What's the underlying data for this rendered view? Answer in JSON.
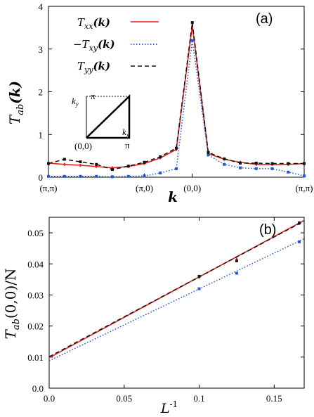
{
  "chart_data": [
    {
      "type": "line",
      "panel_label": "(a)",
      "xlabel": "k",
      "ylabel_main": "T",
      "ylabel_sub": "ab",
      "ylabel_arg": "(k)",
      "ylim": [
        0,
        4
      ],
      "yticks": [
        "0",
        "1",
        "2",
        "3",
        "4"
      ],
      "x_tick_labels": [
        "(π,π)",
        "(π,0)",
        "(0,0)",
        "(π,π)"
      ],
      "x": [
        0,
        0.5,
        1,
        1.5,
        2,
        2.5,
        3,
        3.5,
        4,
        4.5,
        5,
        5.5,
        6,
        6.5,
        7,
        7.5,
        8
      ],
      "series": [
        {
          "name_main": "T",
          "name_sub": "xx",
          "name_arg": "(k)",
          "style": "solid",
          "color": "#e8201e",
          "values": [
            0.33,
            0.3,
            0.28,
            0.25,
            0.22,
            0.25,
            0.32,
            0.45,
            0.65,
            3.55,
            0.55,
            0.42,
            0.35,
            0.3,
            0.3,
            0.3,
            0.32
          ]
        },
        {
          "name_main": "−T",
          "name_sub": "xy",
          "name_arg": "(k)",
          "style": "dotted",
          "color": "#1f57d6",
          "values": [
            0.02,
            0.02,
            0.02,
            0.02,
            0.01,
            0.02,
            0.03,
            0.1,
            0.2,
            3.2,
            0.52,
            0.3,
            0.22,
            0.2,
            0.2,
            0.12,
            0.03
          ]
        },
        {
          "name_main": "T",
          "name_sub": "yy",
          "name_arg": "(k)",
          "style": "dashed",
          "color": "#111111",
          "values": [
            0.32,
            0.42,
            0.36,
            0.3,
            0.18,
            0.26,
            0.35,
            0.48,
            0.68,
            3.62,
            0.58,
            0.43,
            0.33,
            0.33,
            0.32,
            0.32,
            0.32
          ]
        }
      ],
      "inset": {
        "path_labels": [
          "(0,0)",
          "π",
          "π"
        ],
        "axis_labels": [
          "k",
          "x",
          "k",
          "y"
        ]
      }
    },
    {
      "type": "line",
      "panel_label": "(b)",
      "xlabel_main": "L",
      "xlabel_sup": "-1",
      "ylabel_main": "T",
      "ylabel_sub": "ab",
      "ylabel_arg": "(0,0)/N",
      "xlim": [
        0,
        0.17
      ],
      "ylim": [
        0,
        0.055
      ],
      "xticks": [
        "0.0",
        "0.05",
        "0.1",
        "0.15"
      ],
      "yticks": [
        "0.0",
        "0.01",
        "0.02",
        "0.03",
        "0.04",
        "0.05"
      ],
      "x": [
        0.1,
        0.125,
        0.1667
      ],
      "series": [
        {
          "name": "xx",
          "style": "solid",
          "color": "#e8201e",
          "values": [
            0.0358,
            0.0414,
            0.0531
          ],
          "fit": [
            [
              0,
              0.0098
            ],
            [
              0.17,
              0.054
            ]
          ]
        },
        {
          "name": "xy",
          "style": "dotted",
          "color": "#1f57d6",
          "values": [
            0.032,
            0.037,
            0.0471
          ],
          "fit": [
            [
              0,
              0.0088
            ],
            [
              0.17,
              0.0481
            ]
          ]
        },
        {
          "name": "yy",
          "style": "dashed",
          "color": "#111111",
          "values": [
            0.036,
            0.041,
            0.0532
          ],
          "fit": [
            [
              0,
              0.0101
            ],
            [
              0.17,
              0.0538
            ]
          ]
        }
      ]
    }
  ]
}
